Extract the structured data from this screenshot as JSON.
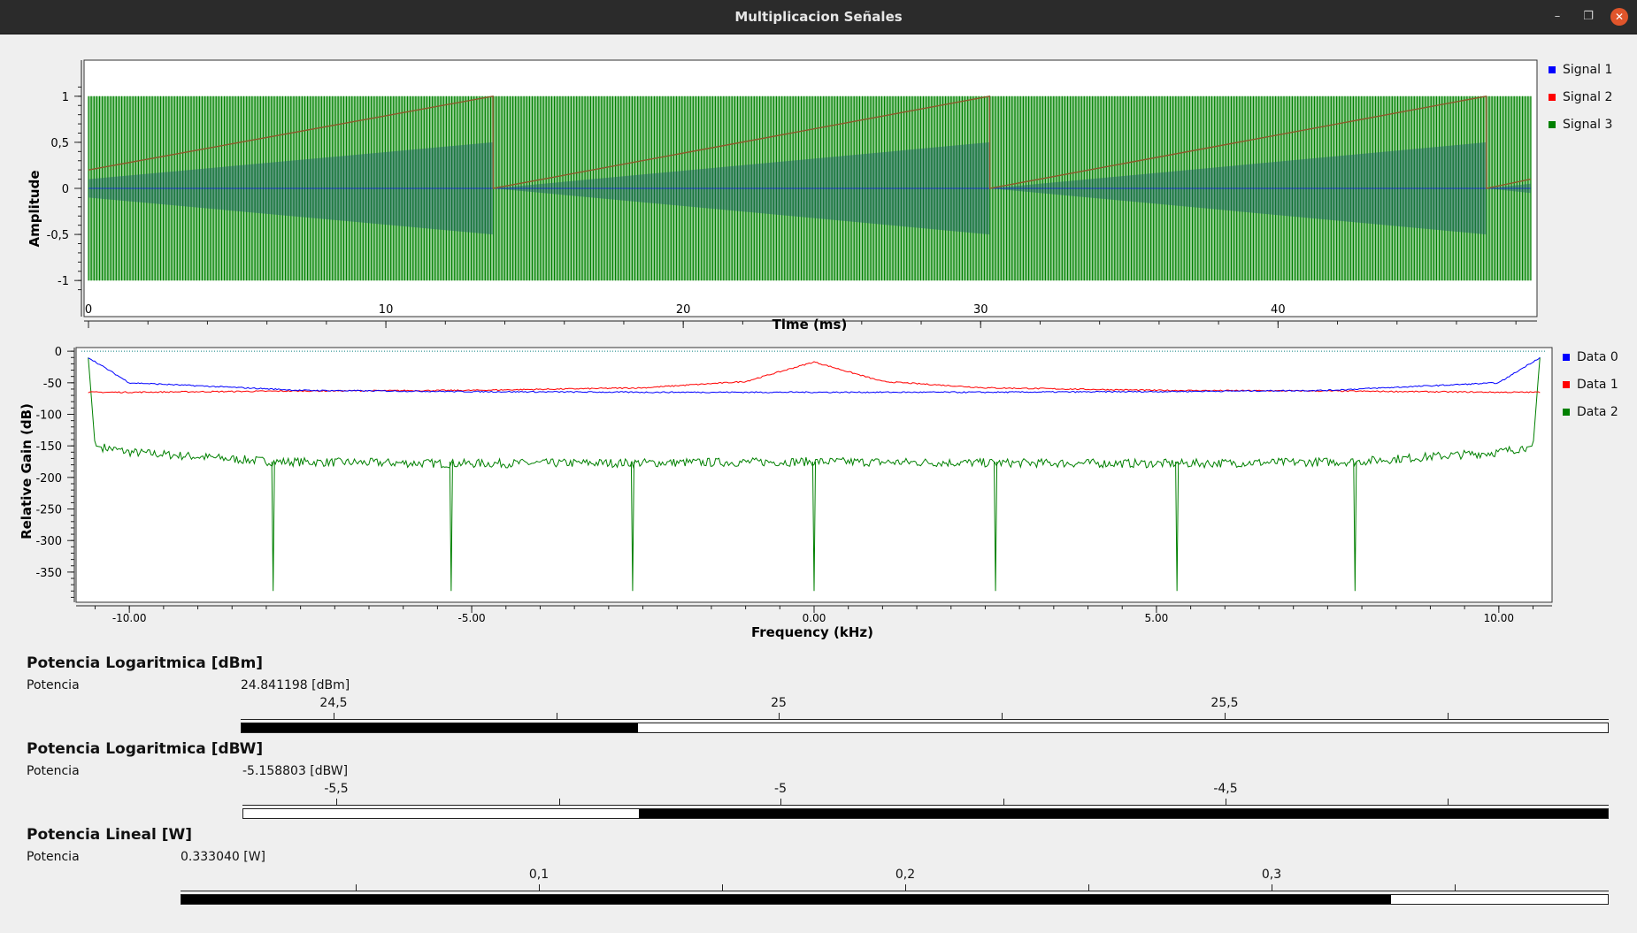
{
  "window": {
    "title": "Multiplicacion Señales",
    "minimize_icon": "minimize-icon",
    "restore_icon": "restore-icon",
    "close_icon": "close-icon"
  },
  "colors": {
    "blue": "#0000ff",
    "red": "#ff0000",
    "green": "#008000",
    "green_fill": "#3fa83f"
  },
  "time_plot": {
    "xlabel": "Time (ms)",
    "ylabel": "Amplitude",
    "xlim": [
      0,
      48.5
    ],
    "ylim": [
      -1.2,
      1.2
    ],
    "xticks": [
      "0",
      "10",
      "20",
      "30",
      "40"
    ],
    "yticks": [
      "1",
      "0,5",
      "0",
      "-0,5",
      "-1"
    ],
    "legend": [
      "Signal 1",
      "Signal 2",
      "Signal 3"
    ]
  },
  "freq_plot": {
    "xlabel": "Frequency (kHz)",
    "ylabel": "Relative Gain (dB)",
    "xlim": [
      -10.7,
      10.7
    ],
    "ylim": [
      -395,
      3
    ],
    "xticks": [
      "-10.00",
      "-5.00",
      "0.00",
      "5.00",
      "10.00"
    ],
    "yticks": [
      "0",
      "-50",
      "-100",
      "-150",
      "-200",
      "-250",
      "-300",
      "-350"
    ],
    "legend": [
      "Data 0",
      "Data 1",
      "Data 2"
    ]
  },
  "chart_data": [
    {
      "type": "line",
      "title": "",
      "xlabel": "Time (ms)",
      "ylabel": "Amplitude",
      "xlim": [
        0,
        48.5
      ],
      "ylim": [
        -1.2,
        1.2
      ],
      "grid": false,
      "legend_position": "right",
      "series": [
        {
          "name": "Signal 1",
          "x": [
            0,
            48.5
          ],
          "y": [
            0,
            0
          ]
        },
        {
          "name": "Signal 2",
          "x": [
            0,
            13.6,
            13.61,
            30.3,
            30.31,
            47,
            47.01,
            48.5
          ],
          "y": [
            0.2,
            1,
            0,
            1,
            0,
            1,
            0,
            0.1
          ]
        },
        {
          "name": "Signal 3",
          "x": [
            0,
            48.5
          ],
          "y": [
            -1,
            1
          ]
        }
      ]
    },
    {
      "type": "line",
      "title": "",
      "xlabel": "Frequency (kHz)",
      "ylabel": "Relative Gain (dB)",
      "xlim": [
        -10.7,
        10.7
      ],
      "ylim": [
        -395,
        3
      ],
      "grid": false,
      "legend_position": "right",
      "series": [
        {
          "name": "Data 0",
          "x": [
            -10.6,
            -10.0,
            -7.5,
            -5.0,
            -2.5,
            0.0,
            2.5,
            5.0,
            7.5,
            10.0,
            10.6
          ],
          "y": [
            -10,
            -50,
            -62,
            -64,
            -65,
            -65,
            -65,
            -64,
            -62,
            -50,
            -10
          ]
        },
        {
          "name": "Data 1",
          "x": [
            -10.6,
            -10.0,
            -7.5,
            -5.0,
            -2.5,
            -1.0,
            0.0,
            1.0,
            2.5,
            5.0,
            7.5,
            10.0,
            10.6
          ],
          "y": [
            -65,
            -65,
            -63,
            -62,
            -58,
            -48,
            -17,
            -48,
            -58,
            -62,
            -63,
            -65,
            -65
          ]
        },
        {
          "name": "Data 2",
          "x": [
            -10.6,
            -10.5,
            -10.0,
            -7.9,
            -5.3,
            -2.65,
            0.0,
            2.65,
            5.3,
            7.9,
            10.0,
            10.5,
            10.6
          ],
          "y": [
            -10,
            -150,
            -160,
            -175,
            -178,
            -177,
            -175,
            -177,
            -178,
            -175,
            -160,
            -150,
            -10
          ]
        }
      ]
    }
  ],
  "gauges": [
    {
      "title": "Potencia Logaritmica [dBm]",
      "label": "Potencia",
      "value_text": "24.841198 [dBm]",
      "value": 24.841198,
      "tick_labels": [
        "24,5",
        "25",
        "25,5"
      ],
      "fill_fraction": 0.29
    },
    {
      "title": "Potencia Logaritmica [dBW]",
      "label": "Potencia",
      "value_text": "-5.158803 [dBW]",
      "value": -5.158803,
      "tick_labels": [
        "-5,5",
        "-5",
        "-4,5"
      ],
      "fill_fraction": 0.29,
      "fill_from_right": true
    },
    {
      "title": "Potencia Lineal [W]",
      "label": "Potencia",
      "value_text": "0.333040 [W]",
      "value": 0.33304,
      "tick_labels": [
        "0,1",
        "0,2",
        "0,3"
      ],
      "fill_fraction": 0.848
    }
  ]
}
